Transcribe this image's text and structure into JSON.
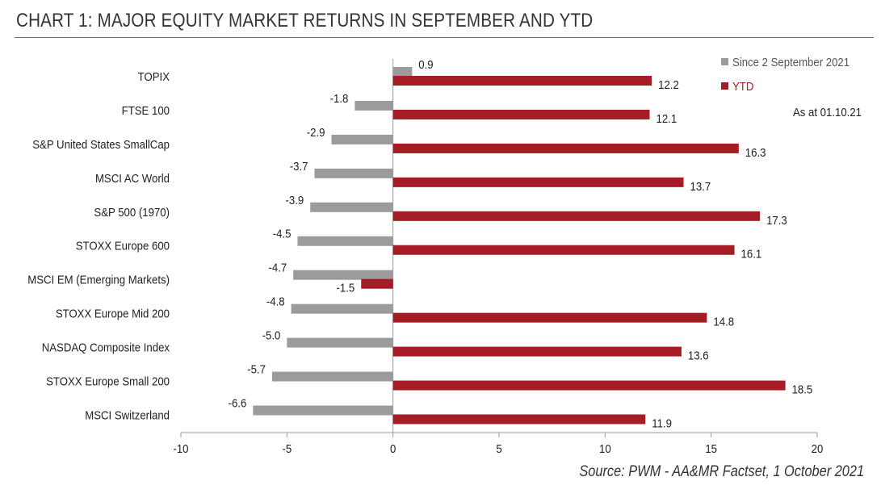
{
  "title": "CHART 1: MAJOR EQUITY MARKET RETURNS IN SEPTEMBER AND YTD",
  "source": "Source: PWM - AA&MR Factset, 1 October 2021",
  "annotation": "As at 01.10.21",
  "colors": {
    "since": "#9b9b9b",
    "ytd": "#a51c24",
    "axis": "#999999",
    "text": "#222222"
  },
  "chart_data": {
    "type": "bar",
    "orientation": "horizontal",
    "categories": [
      "TOPIX",
      "FTSE 100",
      "S&P United States SmallCap",
      "MSCI AC World",
      "S&P 500 (1970)",
      "STOXX Europe 600",
      "MSCI EM (Emerging Markets)",
      "STOXX Europe Mid 200",
      "NASDAQ Composite Index",
      "STOXX Europe Small 200",
      "MSCI Switzerland"
    ],
    "series": [
      {
        "name": "Since 2 September 2021",
        "color": "#9b9b9b",
        "values": [
          0.9,
          -1.8,
          -2.9,
          -3.7,
          -3.9,
          -4.5,
          -4.7,
          -4.8,
          -5.0,
          -5.7,
          -6.6
        ]
      },
      {
        "name": "YTD",
        "color": "#a51c24",
        "values": [
          12.2,
          12.1,
          16.3,
          13.7,
          17.3,
          16.1,
          -1.5,
          14.8,
          13.6,
          18.5,
          11.9
        ]
      }
    ],
    "xlim": [
      -10,
      20
    ],
    "xticks": [
      "-10",
      "-5",
      "0",
      "5",
      "10",
      "15",
      "20"
    ],
    "legend": "top-right",
    "grid": false
  }
}
